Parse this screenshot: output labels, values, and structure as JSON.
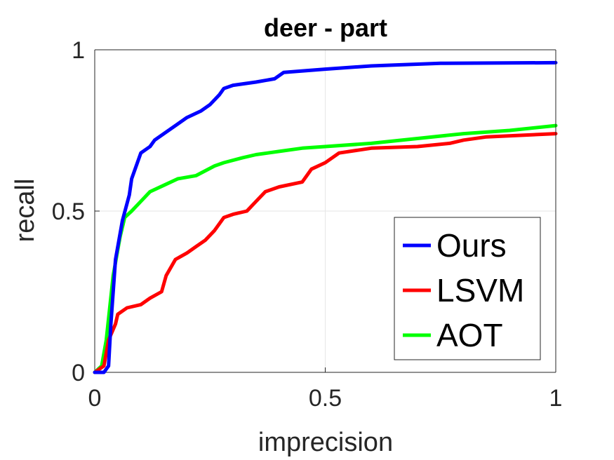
{
  "chart_data": {
    "type": "line",
    "title": "deer - part",
    "xlabel": "imprecision",
    "ylabel": "recall",
    "xlim": [
      0,
      1
    ],
    "ylim": [
      0,
      1
    ],
    "xticks": [
      "0",
      "0.5",
      "1"
    ],
    "yticks": [
      "0",
      "0.5",
      "1"
    ],
    "grid": true,
    "legend_position": "bottom-right",
    "series": [
      {
        "name": "Ours",
        "color": "#0000ff",
        "points": [
          [
            0,
            0
          ],
          [
            0.02,
            0
          ],
          [
            0.03,
            0.02
          ],
          [
            0.035,
            0.15
          ],
          [
            0.045,
            0.35
          ],
          [
            0.06,
            0.47
          ],
          [
            0.075,
            0.55
          ],
          [
            0.08,
            0.6
          ],
          [
            0.1,
            0.68
          ],
          [
            0.12,
            0.7
          ],
          [
            0.13,
            0.72
          ],
          [
            0.15,
            0.74
          ],
          [
            0.18,
            0.77
          ],
          [
            0.2,
            0.79
          ],
          [
            0.23,
            0.81
          ],
          [
            0.25,
            0.83
          ],
          [
            0.27,
            0.86
          ],
          [
            0.28,
            0.88
          ],
          [
            0.3,
            0.89
          ],
          [
            0.35,
            0.9
          ],
          [
            0.39,
            0.91
          ],
          [
            0.41,
            0.93
          ],
          [
            0.5,
            0.94
          ],
          [
            0.6,
            0.95
          ],
          [
            0.75,
            0.958
          ],
          [
            1.0,
            0.96
          ]
        ]
      },
      {
        "name": "LSVM",
        "color": "#ff0000",
        "points": [
          [
            0,
            0
          ],
          [
            0.02,
            0.02
          ],
          [
            0.03,
            0.1
          ],
          [
            0.045,
            0.15
          ],
          [
            0.05,
            0.18
          ],
          [
            0.07,
            0.2
          ],
          [
            0.1,
            0.21
          ],
          [
            0.12,
            0.23
          ],
          [
            0.145,
            0.25
          ],
          [
            0.155,
            0.3
          ],
          [
            0.175,
            0.35
          ],
          [
            0.2,
            0.37
          ],
          [
            0.22,
            0.39
          ],
          [
            0.24,
            0.41
          ],
          [
            0.26,
            0.44
          ],
          [
            0.28,
            0.48
          ],
          [
            0.3,
            0.49
          ],
          [
            0.33,
            0.5
          ],
          [
            0.35,
            0.53
          ],
          [
            0.37,
            0.56
          ],
          [
            0.4,
            0.575
          ],
          [
            0.45,
            0.59
          ],
          [
            0.47,
            0.63
          ],
          [
            0.5,
            0.65
          ],
          [
            0.53,
            0.68
          ],
          [
            0.6,
            0.695
          ],
          [
            0.7,
            0.7
          ],
          [
            0.77,
            0.71
          ],
          [
            0.8,
            0.72
          ],
          [
            0.85,
            0.73
          ],
          [
            1.0,
            0.74
          ]
        ]
      },
      {
        "name": "AOT",
        "color": "#00ff00",
        "points": [
          [
            0,
            0
          ],
          [
            0.015,
            0.02
          ],
          [
            0.025,
            0.1
          ],
          [
            0.04,
            0.3
          ],
          [
            0.055,
            0.42
          ],
          [
            0.065,
            0.48
          ],
          [
            0.08,
            0.5
          ],
          [
            0.1,
            0.53
          ],
          [
            0.12,
            0.56
          ],
          [
            0.15,
            0.58
          ],
          [
            0.18,
            0.6
          ],
          [
            0.22,
            0.61
          ],
          [
            0.26,
            0.64
          ],
          [
            0.28,
            0.65
          ],
          [
            0.32,
            0.665
          ],
          [
            0.35,
            0.675
          ],
          [
            0.4,
            0.685
          ],
          [
            0.45,
            0.695
          ],
          [
            0.5,
            0.7
          ],
          [
            0.6,
            0.71
          ],
          [
            0.7,
            0.725
          ],
          [
            0.8,
            0.74
          ],
          [
            0.9,
            0.75
          ],
          [
            1.0,
            0.765
          ]
        ]
      }
    ]
  }
}
